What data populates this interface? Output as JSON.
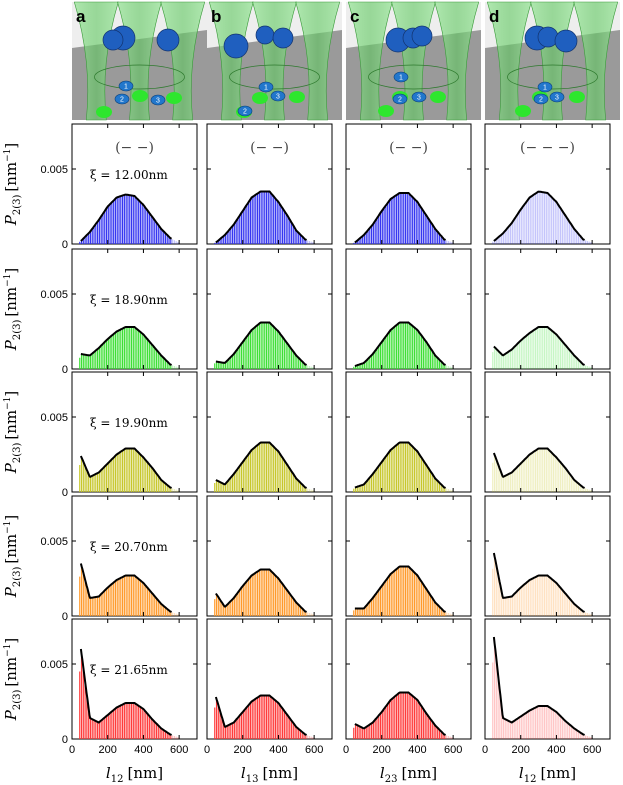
{
  "figure": {
    "columns": [
      {
        "letter": "a",
        "xlabel_sym": "l",
        "xlabel_sub": "12",
        "xlabel_unit": "[nm]"
      },
      {
        "letter": "b",
        "xlabel_sym": "l",
        "xlabel_sub": "13",
        "xlabel_unit": "[nm]"
      },
      {
        "letter": "c",
        "xlabel_sym": "l",
        "xlabel_sub": "23",
        "xlabel_unit": "[nm]"
      },
      {
        "letter": "d",
        "xlabel_sym": "l",
        "xlabel_sub": "12",
        "xlabel_unit": "[nm]"
      }
    ],
    "pattern_labels": [
      "(− −)",
      "(− −)",
      "(− −)",
      "(− − −)"
    ],
    "ylabel_sym": "P",
    "ylabel_sub": "2(3)",
    "ylabel_unit": "[nm",
    "ylabel_unit_exp": "−1",
    "ylabel_unit_close": "]",
    "particle_labels": [
      "1",
      "2",
      "3"
    ],
    "rows": [
      {
        "xi_label": "ξ = 12.00nm",
        "color": "#2b2bf0"
      },
      {
        "xi_label": "ξ = 18.90nm",
        "color": "#33dd2a"
      },
      {
        "xi_label": "ξ = 19.90nm",
        "color": "#c4c420"
      },
      {
        "xi_label": "ξ = 20.70nm",
        "color": "#ff9520"
      },
      {
        "xi_label": "ξ = 21.65nm",
        "color": "#ff3030"
      }
    ]
  },
  "chart_data": {
    "type": "bar",
    "description_type": "histogram grid with fitted curves",
    "xlim": [
      0,
      700
    ],
    "ylim": [
      0,
      0.008
    ],
    "xticks": [
      0,
      200,
      400,
      600
    ],
    "yticks": [
      0,
      0.005
    ],
    "xtick_labels": [
      "0",
      "200",
      "400",
      "600"
    ],
    "ytick_labels": [
      "0",
      "0.005"
    ],
    "x": [
      50,
      100,
      150,
      200,
      250,
      300,
      350,
      400,
      450,
      500,
      550,
      600,
      650
    ],
    "series": [
      {
        "name": "r1-a",
        "values": [
          0.0002,
          0.0008,
          0.0016,
          0.0025,
          0.0031,
          0.0033,
          0.0032,
          0.0026,
          0.0018,
          0.001,
          0.0004,
          0.0001,
          0
        ]
      },
      {
        "name": "r1-b",
        "values": [
          0.0001,
          0.0006,
          0.0013,
          0.0022,
          0.0031,
          0.0035,
          0.0035,
          0.0028,
          0.0019,
          0.0009,
          0.0003,
          0.0001,
          0
        ]
      },
      {
        "name": "r1-c",
        "values": [
          0.0001,
          0.0006,
          0.0013,
          0.0022,
          0.003,
          0.0034,
          0.0034,
          0.0028,
          0.0019,
          0.001,
          0.0003,
          0.0001,
          0
        ]
      },
      {
        "name": "r1-d",
        "values": [
          0.0002,
          0.0007,
          0.0014,
          0.0023,
          0.0031,
          0.0035,
          0.0034,
          0.0028,
          0.0019,
          0.001,
          0.0003,
          0.0001,
          0
        ]
      },
      {
        "name": "r2-a",
        "values": [
          0.001,
          0.0009,
          0.0014,
          0.002,
          0.0025,
          0.0028,
          0.0028,
          0.0023,
          0.0016,
          0.0009,
          0.0003,
          0.0001,
          0
        ]
      },
      {
        "name": "r2-b",
        "values": [
          0.0005,
          0.0004,
          0.001,
          0.0018,
          0.0026,
          0.0031,
          0.0031,
          0.0025,
          0.0017,
          0.0009,
          0.0003,
          0.0001,
          0
        ]
      },
      {
        "name": "r2-c",
        "values": [
          0.0002,
          0.0004,
          0.001,
          0.0018,
          0.0026,
          0.0031,
          0.0031,
          0.0026,
          0.0018,
          0.0009,
          0.0003,
          0.0001,
          0
        ]
      },
      {
        "name": "r2-d",
        "values": [
          0.0015,
          0.0009,
          0.0013,
          0.0019,
          0.0024,
          0.0028,
          0.0028,
          0.0023,
          0.0016,
          0.0009,
          0.0003,
          0.0001,
          0
        ]
      },
      {
        "name": "r3-a",
        "values": [
          0.0024,
          0.001,
          0.0013,
          0.0019,
          0.0025,
          0.0029,
          0.0029,
          0.0023,
          0.0016,
          0.0008,
          0.0003,
          0.0001,
          0
        ]
      },
      {
        "name": "r3-b",
        "values": [
          0.0008,
          0.0005,
          0.0012,
          0.002,
          0.0028,
          0.0033,
          0.0033,
          0.0027,
          0.0018,
          0.0009,
          0.0003,
          0.0001,
          0
        ]
      },
      {
        "name": "r3-c",
        "values": [
          0.0003,
          0.0005,
          0.0012,
          0.002,
          0.0028,
          0.0033,
          0.0033,
          0.0027,
          0.0018,
          0.0009,
          0.0003,
          0.0001,
          0
        ]
      },
      {
        "name": "r3-d",
        "values": [
          0.0026,
          0.001,
          0.0013,
          0.0019,
          0.0025,
          0.0029,
          0.0029,
          0.0023,
          0.0016,
          0.0008,
          0.0003,
          0.0001,
          0
        ]
      },
      {
        "name": "r4-a",
        "values": [
          0.0035,
          0.0012,
          0.0013,
          0.0019,
          0.0024,
          0.0027,
          0.0027,
          0.0022,
          0.0015,
          0.0008,
          0.0003,
          0.0001,
          0
        ]
      },
      {
        "name": "r4-b",
        "values": [
          0.0015,
          0.0006,
          0.0012,
          0.002,
          0.0027,
          0.0031,
          0.0031,
          0.0025,
          0.0017,
          0.0009,
          0.0003,
          0.0001,
          0
        ]
      },
      {
        "name": "r4-c",
        "values": [
          0.0005,
          0.0005,
          0.0012,
          0.002,
          0.0028,
          0.0033,
          0.0033,
          0.0027,
          0.0018,
          0.0009,
          0.0003,
          0.0001,
          0
        ]
      },
      {
        "name": "r4-d",
        "values": [
          0.0042,
          0.0012,
          0.0013,
          0.0019,
          0.0024,
          0.0027,
          0.0027,
          0.0022,
          0.0015,
          0.0008,
          0.0003,
          0.0001,
          0
        ]
      },
      {
        "name": "r5-a",
        "values": [
          0.006,
          0.0014,
          0.0011,
          0.0016,
          0.0021,
          0.0024,
          0.0024,
          0.002,
          0.0013,
          0.0007,
          0.0003,
          0.0001,
          0
        ]
      },
      {
        "name": "r5-b",
        "values": [
          0.0028,
          0.0008,
          0.0011,
          0.0018,
          0.0025,
          0.0029,
          0.0029,
          0.0024,
          0.0016,
          0.0008,
          0.0003,
          0.0001,
          0
        ]
      },
      {
        "name": "r5-c",
        "values": [
          0.001,
          0.0007,
          0.0011,
          0.0018,
          0.0026,
          0.0031,
          0.0031,
          0.0026,
          0.0017,
          0.0009,
          0.0003,
          0.0001,
          0
        ]
      },
      {
        "name": "r5-d",
        "values": [
          0.0068,
          0.0014,
          0.0011,
          0.0015,
          0.0019,
          0.0022,
          0.0022,
          0.0018,
          0.0012,
          0.0007,
          0.0003,
          0.0001,
          0
        ]
      }
    ],
    "note": "Each value is the approximate histogram/fit height P_2(3) at bin center x (nm). Series named r<row>-<column>; columns d are faded (theory only)."
  }
}
